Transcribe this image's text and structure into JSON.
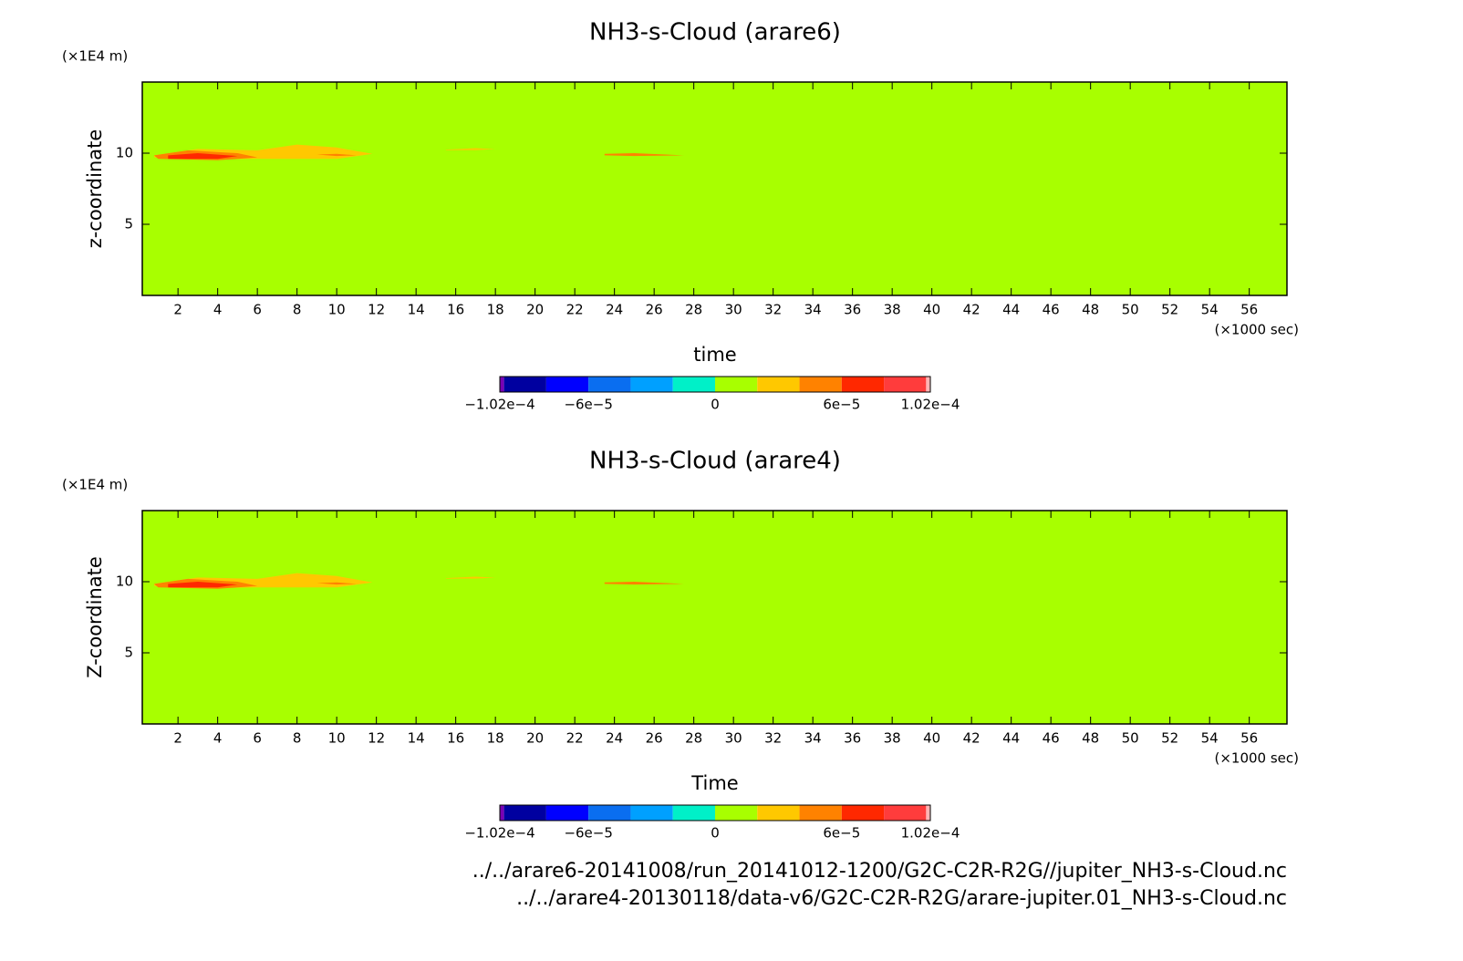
{
  "chart_data": [
    {
      "type": "contour",
      "title": "NH3-s-Cloud (arare6)",
      "y_unit": "(×1E4 m)",
      "ylabel": "z-coordinate",
      "xlabel": "time",
      "x_unit": "(×1000 sec)",
      "xlim": [
        0.2,
        57.9
      ],
      "ylim": [
        0,
        15
      ],
      "xticks": [
        2,
        4,
        6,
        8,
        10,
        12,
        14,
        16,
        18,
        20,
        22,
        24,
        26,
        28,
        30,
        32,
        34,
        36,
        38,
        40,
        42,
        44,
        46,
        48,
        50,
        52,
        54,
        56
      ],
      "yticks": [
        5,
        10
      ],
      "background_level": 0,
      "regions": [
        {
          "level": 2e-05,
          "x": [
            0.8,
            3,
            6,
            8,
            10,
            11.8,
            10,
            6,
            3,
            0.8
          ],
          "y": [
            9.85,
            10.3,
            10.2,
            10.6,
            10.4,
            9.95,
            9.6,
            9.6,
            9.55,
            9.7
          ]
        },
        {
          "level": 4e-05,
          "x": [
            0.8,
            2.5,
            5,
            6,
            4,
            1
          ],
          "y": [
            9.85,
            10.2,
            10.0,
            9.7,
            9.5,
            9.6
          ]
        },
        {
          "level": 6e-05,
          "x": [
            1.5,
            3,
            5,
            4,
            1.5
          ],
          "y": [
            9.85,
            10.0,
            9.8,
            9.6,
            9.6
          ]
        },
        {
          "level": 4e-05,
          "x": [
            9,
            10,
            11,
            10
          ],
          "y": [
            9.9,
            9.95,
            9.85,
            9.8
          ]
        },
        {
          "level": 2e-05,
          "x": [
            15.5,
            17,
            18,
            17,
            15.5
          ],
          "y": [
            10.25,
            10.35,
            10.28,
            10.22,
            10.22
          ]
        },
        {
          "level": 4e-05,
          "x": [
            23.5,
            25,
            27.5,
            25,
            23.5
          ],
          "y": [
            9.95,
            10.0,
            9.85,
            9.8,
            9.85
          ]
        }
      ],
      "colorbar": {
        "bounds": [
          -0.000102,
          -0.0001,
          -8e-05,
          -6e-05,
          -4e-05,
          -2e-05,
          0,
          2e-05,
          4e-05,
          6e-05,
          8e-05,
          0.0001,
          0.000102
        ],
        "colors": [
          "#7a00b4",
          "#0000a0",
          "#0000ff",
          "#0a6ef0",
          "#00a0ff",
          "#00f0c8",
          "#a8ff00",
          "#ffc800",
          "#ff8200",
          "#ff2800",
          "#ff3c3c",
          "#ffb4b4"
        ],
        "ticks": [
          {
            "value": -0.000102,
            "label": "−1.02e−4"
          },
          {
            "value": -6e-05,
            "label": "−6e−5"
          },
          0,
          {
            "value": 6e-05,
            "label": "6e−5"
          },
          {
            "value": 0.000102,
            "label": "1.02e−4"
          }
        ]
      }
    },
    {
      "type": "contour",
      "title": "NH3-s-Cloud (arare4)",
      "y_unit": "(×1E4 m)",
      "ylabel": "Z-coordinate",
      "xlabel": "Time",
      "x_unit": "(×1000 sec)",
      "xlim": [
        0.2,
        57.9
      ],
      "ylim": [
        0,
        15
      ],
      "xticks": [
        2,
        4,
        6,
        8,
        10,
        12,
        14,
        16,
        18,
        20,
        22,
        24,
        26,
        28,
        30,
        32,
        34,
        36,
        38,
        40,
        42,
        44,
        46,
        48,
        50,
        52,
        54,
        56
      ],
      "yticks": [
        5,
        10
      ],
      "background_level": 0,
      "regions": [
        {
          "level": 2e-05,
          "x": [
            0.8,
            3,
            6,
            8,
            10,
            11.8,
            10,
            6,
            3,
            0.8
          ],
          "y": [
            9.85,
            10.3,
            10.2,
            10.6,
            10.4,
            9.95,
            9.6,
            9.6,
            9.55,
            9.7
          ]
        },
        {
          "level": 4e-05,
          "x": [
            0.8,
            2.5,
            5,
            6,
            4,
            1
          ],
          "y": [
            9.85,
            10.2,
            10.0,
            9.7,
            9.5,
            9.6
          ]
        },
        {
          "level": 6e-05,
          "x": [
            1.5,
            3,
            5,
            4,
            1.5
          ],
          "y": [
            9.85,
            10.0,
            9.8,
            9.6,
            9.6
          ]
        },
        {
          "level": 4e-05,
          "x": [
            9,
            10,
            11,
            10
          ],
          "y": [
            9.9,
            9.95,
            9.85,
            9.8
          ]
        },
        {
          "level": 2e-05,
          "x": [
            15.5,
            17,
            18,
            17,
            15.5
          ],
          "y": [
            10.25,
            10.35,
            10.28,
            10.22,
            10.22
          ]
        },
        {
          "level": 4e-05,
          "x": [
            23.5,
            25,
            27.5,
            25,
            23.5
          ],
          "y": [
            9.95,
            10.0,
            9.85,
            9.8,
            9.85
          ]
        }
      ],
      "colorbar": {
        "bounds": [
          -0.000102,
          -0.0001,
          -8e-05,
          -6e-05,
          -4e-05,
          -2e-05,
          0,
          2e-05,
          4e-05,
          6e-05,
          8e-05,
          0.0001,
          0.000102
        ],
        "colors": [
          "#7a00b4",
          "#0000a0",
          "#0000ff",
          "#0a6ef0",
          "#00a0ff",
          "#00f0c8",
          "#a8ff00",
          "#ffc800",
          "#ff8200",
          "#ff2800",
          "#ff3c3c",
          "#ffb4b4"
        ],
        "ticks": [
          {
            "value": -0.000102,
            "label": "−1.02e−4"
          },
          {
            "value": -6e-05,
            "label": "−6e−5"
          },
          0,
          {
            "value": 6e-05,
            "label": "6e−5"
          },
          {
            "value": 0.000102,
            "label": "1.02e−4"
          }
        ]
      }
    }
  ],
  "footnotes": [
    "../../arare6-20141008/run_20141012-1200/G2C-C2R-R2G//jupiter_NH3-s-Cloud.nc",
    "../../arare4-20130118/data-v6/G2C-C2R-R2G/arare-jupiter.01_NH3-s-Cloud.nc"
  ]
}
